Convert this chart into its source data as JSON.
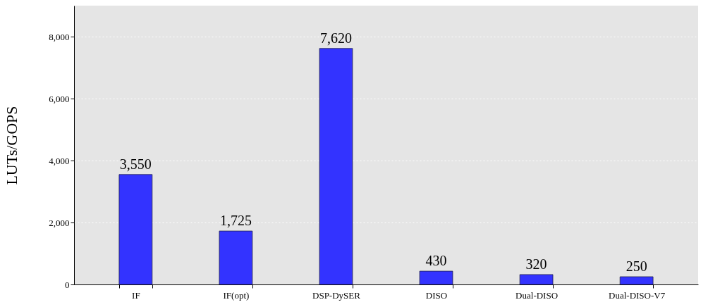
{
  "chart_data": {
    "type": "bar",
    "ylabel": "LUTs/GOPS",
    "categories": [
      "IF",
      "IF(opt)",
      "DSP-DySER",
      "DISO",
      "Dual-DISO",
      "Dual-DISO-V7"
    ],
    "values": [
      3550,
      1725,
      7620,
      430,
      320,
      250
    ],
    "color": "#3333ff",
    "value_labels": [
      "3,550",
      "1,725",
      "7,620",
      "430",
      "320",
      "250"
    ],
    "ylim": [
      0,
      9000
    ],
    "yticks": [
      0,
      {
        "value": 2000,
        "label": "2,000"
      },
      {
        "value": 4000,
        "label": "4,000"
      },
      {
        "value": 6000,
        "label": "6,000"
      },
      {
        "value": 8000,
        "label": "8,000"
      }
    ],
    "grid": "y"
  }
}
